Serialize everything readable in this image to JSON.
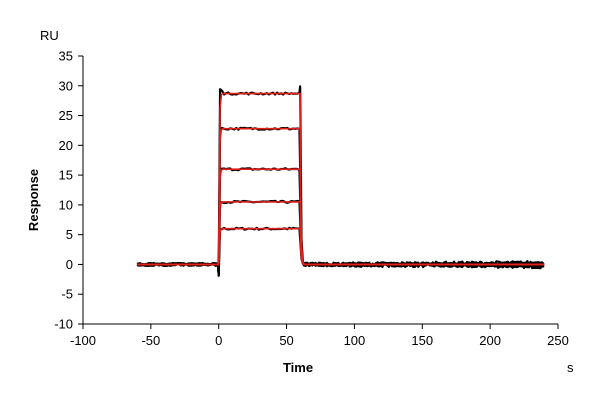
{
  "chart_data": {
    "type": "line",
    "title": "",
    "xlabel": "Time",
    "ylabel": "Response",
    "x_unit": "s",
    "y_unit": "RU",
    "xlim": [
      -100,
      250
    ],
    "ylim": [
      -10,
      35
    ],
    "xticks": [
      -100,
      -50,
      0,
      50,
      100,
      150,
      200,
      250
    ],
    "yticks": [
      -10,
      -5,
      0,
      5,
      10,
      15,
      20,
      25,
      30,
      35
    ],
    "grid": false,
    "legend": "none",
    "colors": {
      "measured": "#000000",
      "fit": "#e0201b"
    },
    "association_start": 0,
    "dissociation_start": 60,
    "x_end": 240,
    "baseline_start": -60,
    "plateaus": [
      6,
      10.5,
      16,
      22.8,
      28.7
    ],
    "series": [
      {
        "kind": "measured",
        "plateau": 6,
        "x": [
          -60,
          0,
          1,
          60,
          61,
          62,
          240
        ],
        "y": [
          0,
          0,
          6,
          6.1,
          0.5,
          0,
          -0.3
        ]
      },
      {
        "kind": "measured",
        "plateau": 10.5,
        "x": [
          -60,
          0,
          1,
          60,
          61,
          62,
          240
        ],
        "y": [
          0,
          0,
          10.5,
          10.6,
          0.5,
          0,
          -0.2
        ]
      },
      {
        "kind": "measured",
        "plateau": 16,
        "x": [
          -60,
          0,
          1,
          60,
          61,
          62,
          240
        ],
        "y": [
          0,
          0,
          16,
          16.1,
          0.5,
          0,
          0
        ]
      },
      {
        "kind": "measured",
        "plateau": 22.8,
        "x": [
          -60,
          0,
          1,
          60,
          61,
          62,
          240
        ],
        "y": [
          0,
          0,
          22.8,
          22.9,
          0.5,
          0,
          0.2
        ]
      },
      {
        "kind": "measured",
        "plateau": 28.7,
        "x": [
          -60,
          0,
          1,
          60,
          61,
          62,
          240
        ],
        "y": [
          0,
          0,
          28.7,
          29.8,
          0.5,
          0,
          0.3
        ]
      },
      {
        "kind": "fit",
        "plateau": 6,
        "x": [
          -60,
          0,
          1,
          60,
          61,
          62,
          240
        ],
        "y": [
          0,
          0,
          6,
          6,
          0.3,
          0,
          0
        ]
      },
      {
        "kind": "fit",
        "plateau": 10.5,
        "x": [
          -60,
          0,
          1,
          60,
          61,
          62,
          240
        ],
        "y": [
          0,
          0,
          10.5,
          10.5,
          0.3,
          0,
          0
        ]
      },
      {
        "kind": "fit",
        "plateau": 16,
        "x": [
          -60,
          0,
          1,
          60,
          61,
          62,
          240
        ],
        "y": [
          0,
          0,
          16,
          16,
          0.3,
          0,
          0
        ]
      },
      {
        "kind": "fit",
        "plateau": 22.8,
        "x": [
          -60,
          0,
          1,
          60,
          61,
          62,
          240
        ],
        "y": [
          0,
          0,
          22.8,
          22.8,
          0.3,
          0,
          0
        ]
      },
      {
        "kind": "fit",
        "plateau": 28.7,
        "x": [
          -60,
          0,
          1,
          60,
          61,
          62,
          240
        ],
        "y": [
          0,
          0,
          28.7,
          28.7,
          0.3,
          0,
          0
        ]
      }
    ]
  }
}
